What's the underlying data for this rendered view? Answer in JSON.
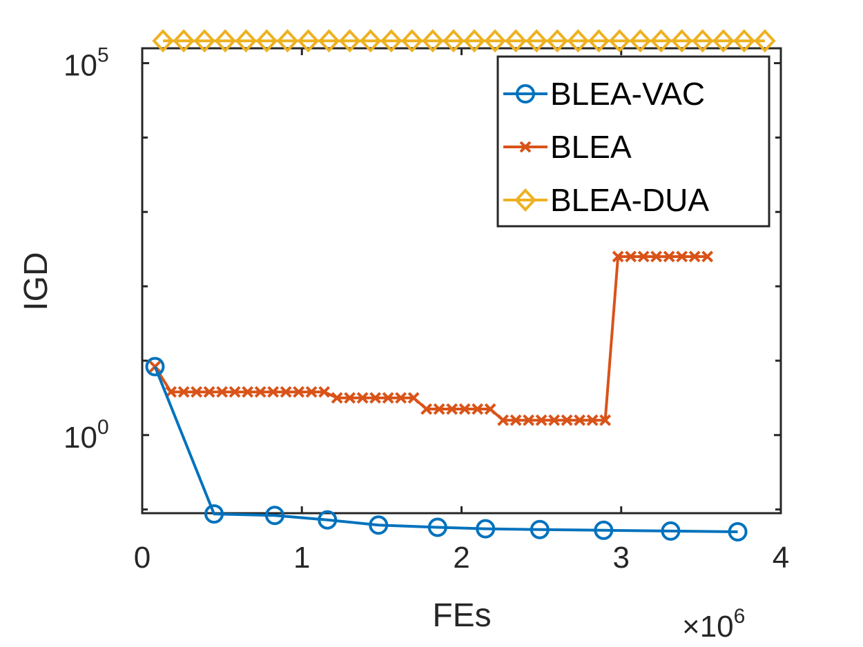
{
  "chart_data": {
    "type": "line",
    "title": "",
    "xlabel": "FEs",
    "ylabel": "IGD",
    "x_multiplier_label": "×10",
    "x_multiplier_exponent": "6",
    "x_scale": 1000000,
    "xlim": [
      0,
      4
    ],
    "y_scale": "log",
    "ylim_log10": [
      -1.05,
      5.2
    ],
    "xticks": [
      {
        "value": 0,
        "label": "0"
      },
      {
        "value": 1,
        "label": "1"
      },
      {
        "value": 2,
        "label": "2"
      },
      {
        "value": 3,
        "label": "3"
      },
      {
        "value": 4,
        "label": "4"
      }
    ],
    "yticks": [
      {
        "log10": 0,
        "base": "10",
        "exp": "0"
      },
      {
        "log10": 5,
        "base": "10",
        "exp": "5"
      }
    ],
    "legend_position": "top-right",
    "series": [
      {
        "name": "BLEA-VAC",
        "color": "#0072BD",
        "marker": "circle",
        "x": [
          0.08,
          0.45,
          0.83,
          1.16,
          1.48,
          1.85,
          2.15,
          2.49,
          2.89,
          3.31,
          3.73
        ],
        "log10_y": [
          0.92,
          -1.06,
          -1.08,
          -1.14,
          -1.21,
          -1.24,
          -1.26,
          -1.27,
          -1.28,
          -1.29,
          -1.3
        ]
      },
      {
        "name": "BLEA",
        "color": "#D95319",
        "marker": "x",
        "x": [
          0.08,
          0.18,
          0.26,
          0.34,
          0.42,
          0.5,
          0.58,
          0.66,
          0.74,
          0.82,
          0.9,
          0.98,
          1.06,
          1.14,
          1.22,
          1.3,
          1.38,
          1.46,
          1.54,
          1.62,
          1.7,
          1.78,
          1.86,
          1.94,
          2.02,
          2.1,
          2.18,
          2.26,
          2.34,
          2.42,
          2.5,
          2.58,
          2.66,
          2.74,
          2.82,
          2.9,
          2.98,
          3.06,
          3.14,
          3.22,
          3.3,
          3.38,
          3.46,
          3.54
        ],
        "log10_y": [
          0.92,
          0.58,
          0.58,
          0.58,
          0.58,
          0.58,
          0.58,
          0.58,
          0.58,
          0.58,
          0.58,
          0.58,
          0.58,
          0.58,
          0.5,
          0.5,
          0.5,
          0.5,
          0.5,
          0.5,
          0.5,
          0.35,
          0.35,
          0.35,
          0.35,
          0.35,
          0.35,
          0.2,
          0.2,
          0.2,
          0.2,
          0.2,
          0.2,
          0.2,
          0.2,
          0.2,
          2.4,
          2.4,
          2.4,
          2.4,
          2.4,
          2.4,
          2.4,
          2.4
        ]
      },
      {
        "name": "BLEA-DUA",
        "color": "#EDB120",
        "marker": "diamond",
        "x": [
          0.13,
          0.26,
          0.39,
          0.52,
          0.65,
          0.78,
          0.91,
          1.04,
          1.17,
          1.3,
          1.43,
          1.56,
          1.69,
          1.82,
          1.95,
          2.08,
          2.21,
          2.34,
          2.47,
          2.6,
          2.73,
          2.86,
          2.99,
          3.12,
          3.25,
          3.38,
          3.51,
          3.64,
          3.77,
          3.9
        ],
        "log10_y": [
          5.3,
          5.3,
          5.3,
          5.3,
          5.3,
          5.3,
          5.3,
          5.3,
          5.3,
          5.3,
          5.3,
          5.3,
          5.3,
          5.3,
          5.3,
          5.3,
          5.3,
          5.3,
          5.3,
          5.3,
          5.3,
          5.3,
          5.3,
          5.3,
          5.3,
          5.3,
          5.3,
          5.3,
          5.3,
          5.3
        ]
      }
    ]
  }
}
